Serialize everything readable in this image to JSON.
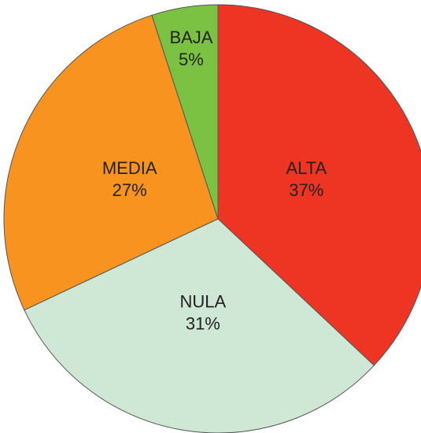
{
  "chart_data": {
    "type": "pie",
    "categories": [
      "ALTA",
      "NULA",
      "MEDIA",
      "BAJA"
    ],
    "values": [
      37,
      31,
      27,
      5
    ],
    "value_labels": [
      "37%",
      "31%",
      "27%",
      "5%"
    ],
    "colors": [
      "#ee3524",
      "#cfe8d5",
      "#f7931e",
      "#7cc242"
    ]
  }
}
